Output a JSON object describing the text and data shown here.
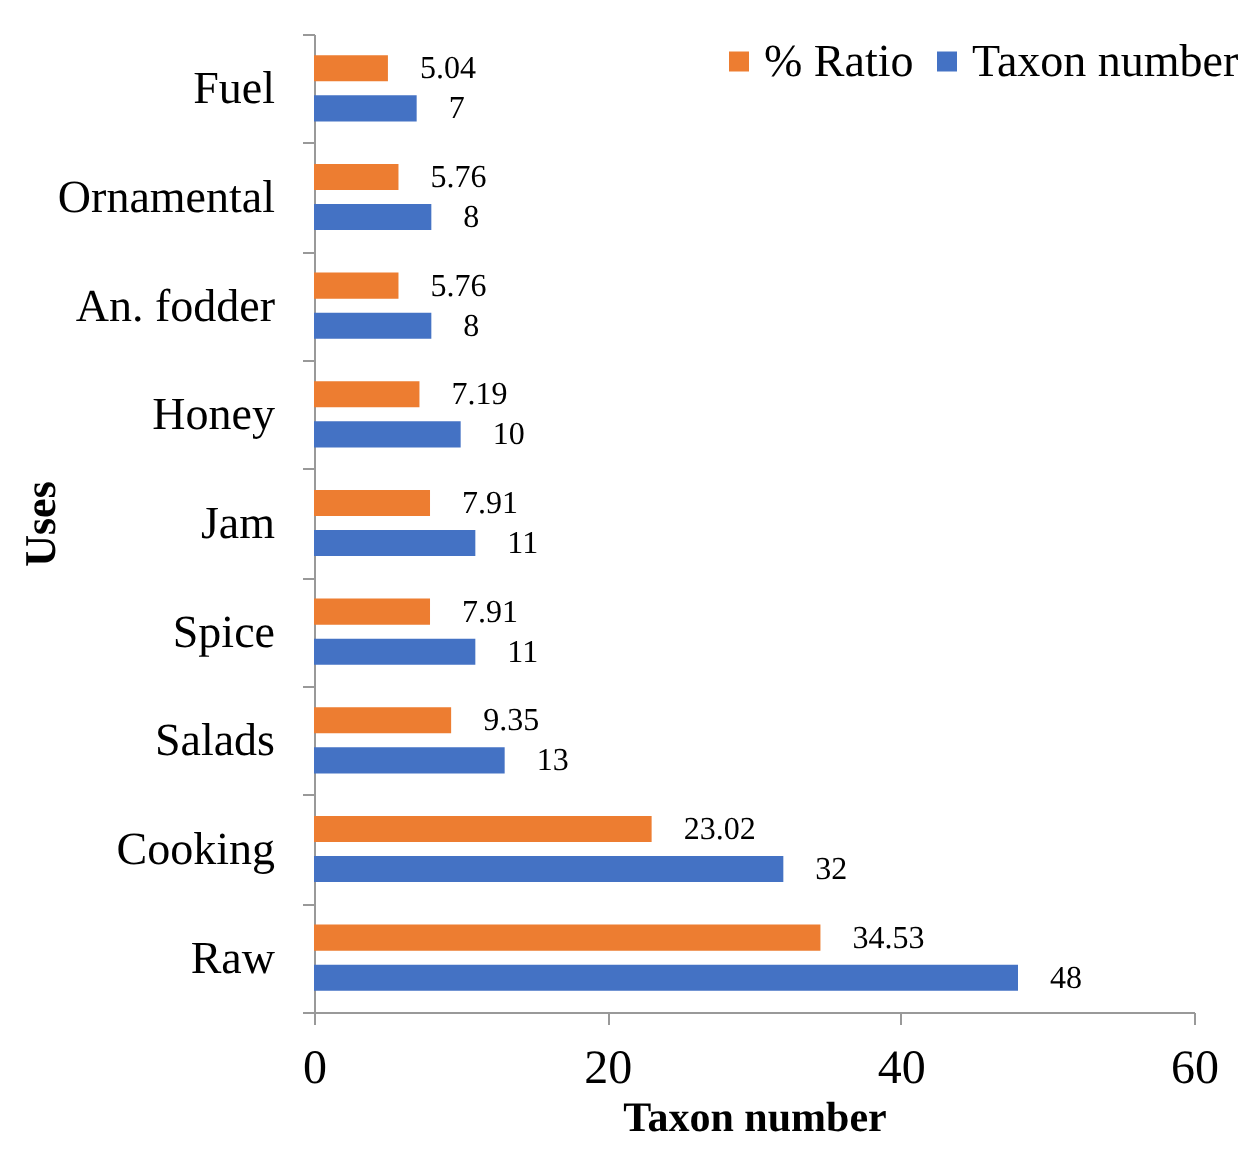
{
  "chart_data": {
    "type": "bar",
    "orientation": "horizontal",
    "xlabel": "Taxon number",
    "ylabel": "Uses",
    "categories": [
      "Fuel",
      "Ornamental",
      "An. fodder",
      "Honey",
      "Jam",
      "Spice",
      "Salads",
      "Cooking",
      "Raw"
    ],
    "series": [
      {
        "name": "% Ratio",
        "color": "#ed7d31",
        "values": [
          5.04,
          5.76,
          5.76,
          7.19,
          7.91,
          7.91,
          9.35,
          23.02,
          34.53
        ]
      },
      {
        "name": "Taxon number",
        "color": "#4472c4",
        "values": [
          7,
          8,
          8,
          10,
          11,
          11,
          13,
          32,
          48
        ]
      }
    ],
    "xlim": [
      0,
      60
    ],
    "xticks": [
      0,
      20,
      40,
      60
    ],
    "grid": false,
    "legend": "top right",
    "data_labels": true
  }
}
